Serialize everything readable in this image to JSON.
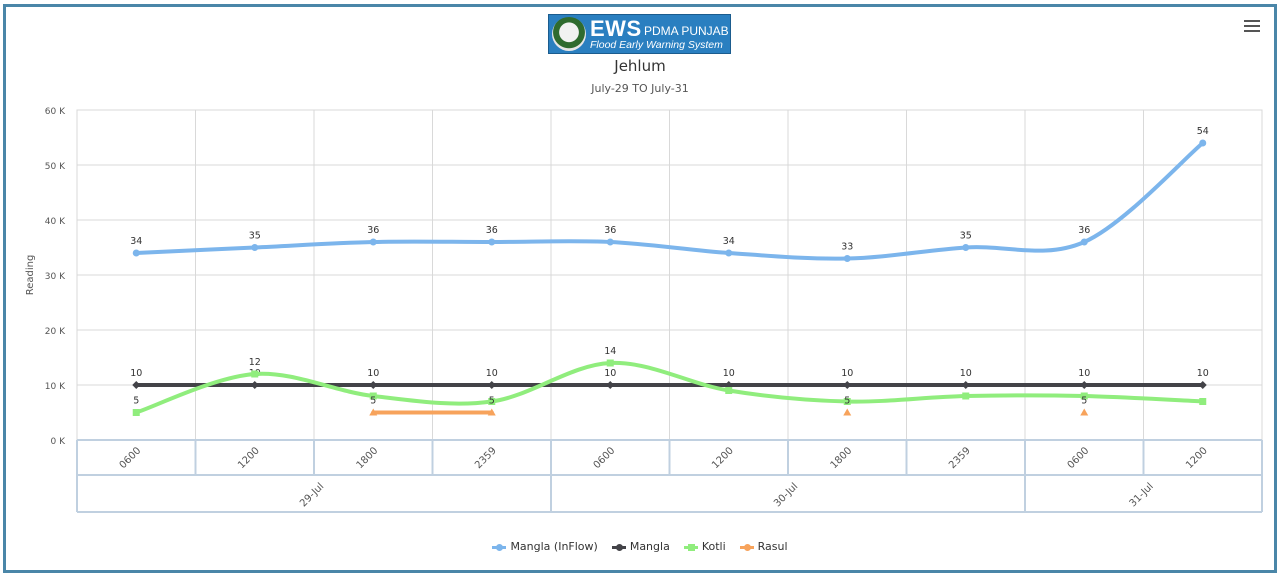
{
  "header": {
    "logo_main": "EWS",
    "logo_org": "PDMA PUNJAB",
    "logo_sub": "Flood Early Warning System"
  },
  "chart_data": {
    "type": "line",
    "title": "Jehlum",
    "subtitle": "July-29 TO July-31",
    "ylabel": "Reading",
    "ylim": [
      0,
      60000
    ],
    "yticks": [
      0,
      10000,
      20000,
      30000,
      40000,
      50000,
      60000
    ],
    "ytick_labels": [
      "0 K",
      "10 K",
      "20 K",
      "30 K",
      "40 K",
      "50 K",
      "60 K"
    ],
    "categories": [
      "0600",
      "1200",
      "1800",
      "2359",
      "0600",
      "1200",
      "1800",
      "2359",
      "0600",
      "1200"
    ],
    "groups": [
      {
        "label": "29-Jul",
        "count": 4
      },
      {
        "label": "30-Jul",
        "count": 4
      },
      {
        "label": "31-Jul",
        "count": 2
      }
    ],
    "grid": true,
    "legend_position": "bottom-center",
    "series": [
      {
        "name": "Mangla (InFlow)",
        "color": "#7cb5ec",
        "marker": "circle",
        "values": [
          34000,
          35000,
          36000,
          36000,
          36000,
          34000,
          33000,
          35000,
          36000,
          54000
        ],
        "labels": [
          "34",
          "35",
          "36",
          "36",
          "36",
          "34",
          "33",
          "35",
          "36",
          "54"
        ]
      },
      {
        "name": "Mangla",
        "color": "#434348",
        "marker": "diamond",
        "values": [
          10000,
          10000,
          10000,
          10000,
          10000,
          10000,
          10000,
          10000,
          10000,
          10000
        ],
        "labels": [
          "10",
          "10",
          "10",
          "10",
          "10",
          "10",
          "10",
          "10",
          "10",
          "10"
        ]
      },
      {
        "name": "Kotli",
        "color": "#90ed7d",
        "marker": "square",
        "values": [
          5000,
          12000,
          8000,
          7000,
          14000,
          9000,
          7000,
          8000,
          8000,
          7000
        ],
        "labels": [
          "5",
          "12",
          "",
          "",
          "14",
          "",
          "",
          "",
          "",
          ""
        ]
      },
      {
        "name": "Rasul",
        "color": "#f7a35c",
        "marker": "triangle",
        "values": [
          null,
          null,
          5000,
          5000,
          null,
          null,
          5000,
          null,
          5000,
          null
        ],
        "labels": [
          "",
          "",
          "5",
          "5",
          "",
          "",
          "5",
          "",
          "5",
          ""
        ]
      }
    ]
  }
}
